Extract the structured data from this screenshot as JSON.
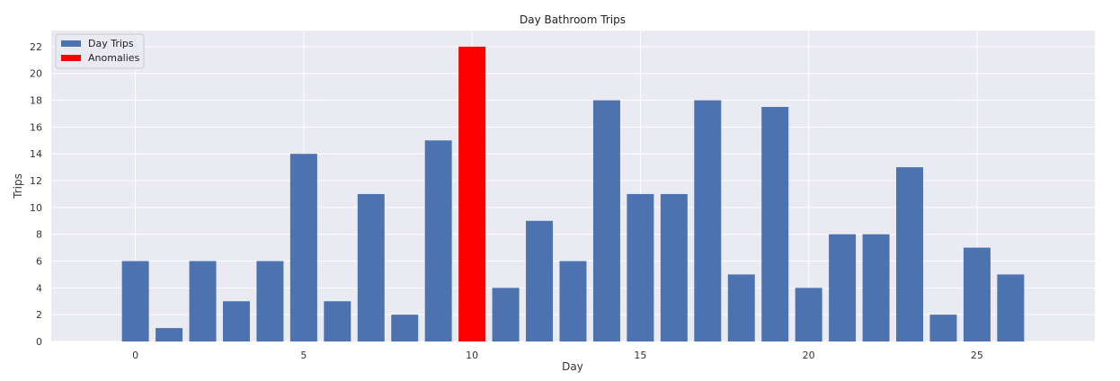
{
  "chart_data": {
    "type": "bar",
    "title": "Day Bathroom Trips",
    "xlabel": "Day",
    "ylabel": "Trips",
    "xlim": [
      -2.5,
      28.5
    ],
    "ylim": [
      0,
      23.2
    ],
    "xticks": [
      0,
      5,
      10,
      15,
      20,
      25
    ],
    "yticks": [
      0,
      2,
      4,
      6,
      8,
      10,
      12,
      14,
      16,
      18,
      20,
      22
    ],
    "grid": true,
    "legend_position": "top-left",
    "series": [
      {
        "name": "Day Trips",
        "color": "#4c72b0",
        "x": [
          0,
          1,
          2,
          3,
          4,
          5,
          6,
          7,
          8,
          9,
          11,
          12,
          13,
          14,
          15,
          16,
          17,
          18,
          19,
          20,
          21,
          22,
          23,
          24,
          25,
          26
        ],
        "values": [
          6,
          1,
          6,
          3,
          6,
          14,
          3,
          11,
          2,
          15,
          4,
          9,
          6,
          18,
          11,
          11,
          18,
          5,
          17.5,
          4,
          8,
          8,
          13,
          2,
          7,
          5
        ]
      },
      {
        "name": "Anomalies",
        "color": "#ff0000",
        "x": [
          10
        ],
        "values": [
          22
        ]
      }
    ]
  }
}
